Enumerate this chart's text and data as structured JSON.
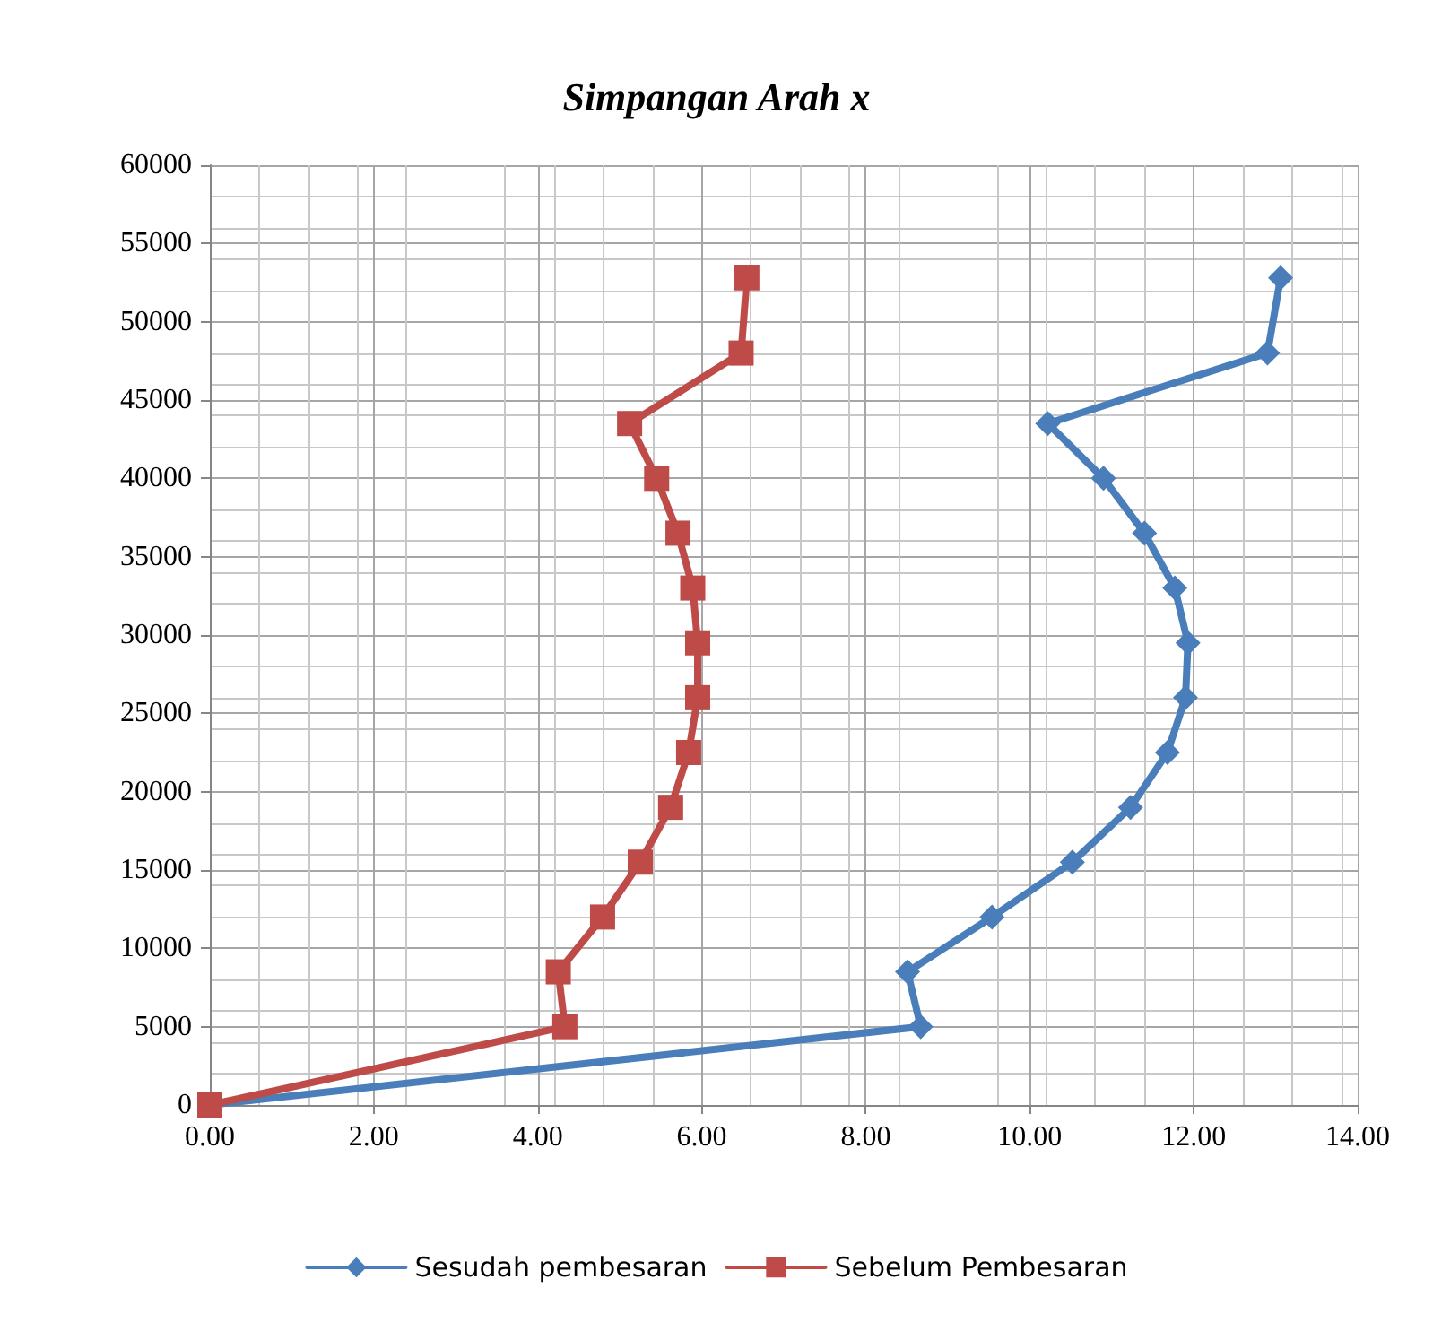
{
  "chart_data": {
    "type": "line",
    "title": "Simpangan Arah x",
    "xlim": [
      0,
      14
    ],
    "xticks": [
      {
        "value": 0,
        "label": "0.00"
      },
      {
        "value": 2,
        "label": "2.00"
      },
      {
        "value": 4,
        "label": "4.00"
      },
      {
        "value": 6,
        "label": "6.00"
      },
      {
        "value": 8,
        "label": "8.00"
      },
      {
        "value": 10,
        "label": "10.00"
      },
      {
        "value": 12,
        "label": "12.00"
      },
      {
        "value": 14,
        "label": "14.00"
      }
    ],
    "ylim": [
      0,
      60000
    ],
    "yticks": [
      0,
      5000,
      10000,
      15000,
      20000,
      25000,
      30000,
      35000,
      40000,
      45000,
      50000,
      55000,
      60000
    ],
    "grid": true,
    "legend": "bottom",
    "line_style": "solid",
    "series": [
      {
        "name": "Sesudah pembesaran",
        "color": "#4a7ebb",
        "marker": "diamond",
        "x": [
          0,
          8.67,
          8.51,
          9.54,
          10.52,
          11.23,
          11.68,
          11.9,
          11.93,
          11.77,
          11.4,
          10.9,
          10.22,
          12.9,
          13.06
        ],
        "values": [
          0,
          5000,
          8500,
          12000,
          15500,
          19000,
          22500,
          26000,
          29500,
          33000,
          36500,
          40000,
          43500,
          48000,
          52800
        ]
      },
      {
        "name": "Sebelum Pembesaran",
        "color": "#be4b48",
        "marker": "square",
        "x": [
          0,
          4.33,
          4.25,
          4.79,
          5.25,
          5.62,
          5.84,
          5.95,
          5.95,
          5.89,
          5.71,
          5.45,
          5.12,
          6.48,
          6.55
        ],
        "values": [
          0,
          5000,
          8500,
          12000,
          15500,
          19000,
          22500,
          26000,
          29500,
          33000,
          36500,
          40000,
          43500,
          48000,
          52800
        ]
      }
    ]
  }
}
